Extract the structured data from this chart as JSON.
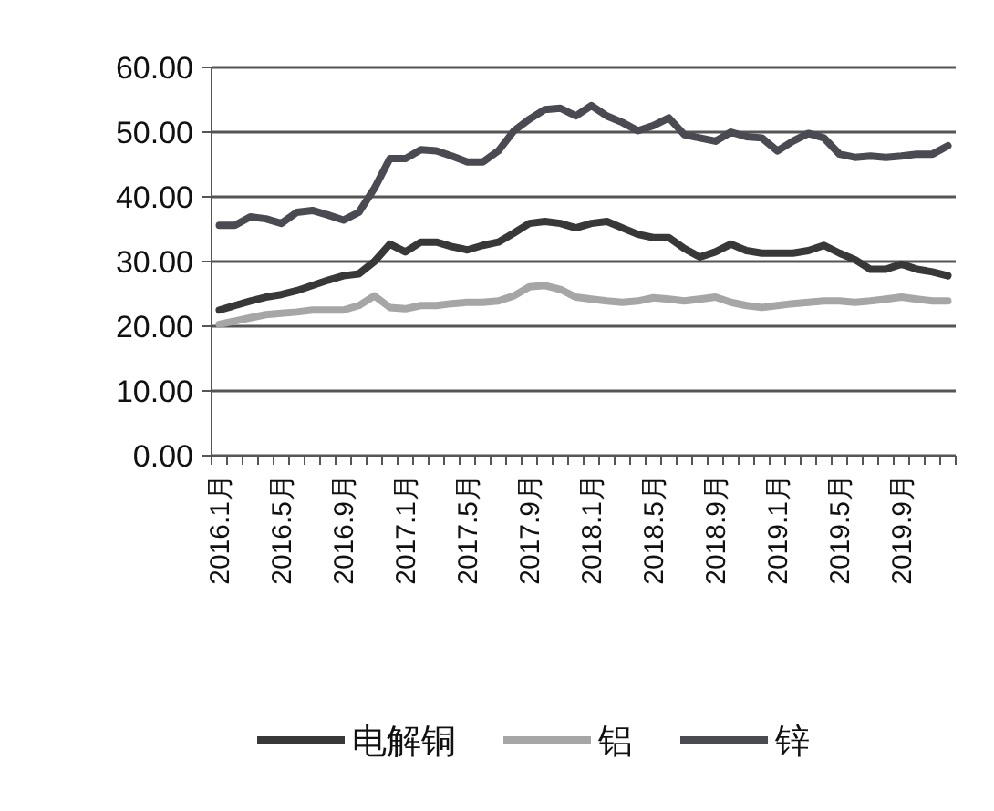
{
  "chart_data": {
    "type": "line",
    "categories": [
      "2016.1月",
      null,
      null,
      null,
      "2016.5月",
      null,
      null,
      null,
      "2016.9月",
      null,
      null,
      null,
      "2017.1月",
      null,
      null,
      null,
      "2017.5月",
      null,
      null,
      null,
      "2017.9月",
      null,
      null,
      null,
      "2018.1月",
      null,
      null,
      null,
      "2018.5月",
      null,
      null,
      null,
      "2018.9月",
      null,
      null,
      null,
      "2019.1月",
      null,
      null,
      null,
      "2019.5月",
      null,
      null,
      null,
      "2019.9月",
      null,
      null,
      null
    ],
    "series": [
      {
        "name": "电解铜",
        "color": "#383838",
        "values": [
          22.5,
          23.2,
          23.9,
          24.5,
          24.9,
          25.5,
          26.3,
          27.1,
          27.8,
          28.1,
          30.0,
          32.7,
          31.5,
          33.0,
          33.0,
          32.3,
          31.8,
          32.5,
          33.0,
          34.4,
          35.9,
          36.2,
          35.9,
          35.2,
          35.9,
          36.2,
          35.2,
          34.2,
          33.7,
          33.7,
          32.0,
          30.7,
          31.5,
          32.7,
          31.7,
          31.3,
          31.3,
          31.3,
          31.7,
          32.5,
          31.3,
          30.3,
          28.8,
          28.8,
          29.6,
          28.8,
          28.4,
          27.8
        ]
      },
      {
        "name": "铝",
        "color": "#a6a6a6",
        "values": [
          20.3,
          20.8,
          21.3,
          21.8,
          22.0,
          22.2,
          22.5,
          22.5,
          22.5,
          23.2,
          24.7,
          22.9,
          22.7,
          23.2,
          23.2,
          23.5,
          23.7,
          23.7,
          23.9,
          24.7,
          26.1,
          26.3,
          25.7,
          24.5,
          24.2,
          23.9,
          23.7,
          23.9,
          24.4,
          24.2,
          23.9,
          24.2,
          24.5,
          23.7,
          23.2,
          22.9,
          23.2,
          23.5,
          23.7,
          23.9,
          23.9,
          23.7,
          23.9,
          24.2,
          24.5,
          24.2,
          23.9,
          23.9
        ]
      },
      {
        "name": "锌",
        "color": "#4a4a52",
        "values": [
          35.6,
          35.6,
          36.9,
          36.6,
          35.9,
          37.6,
          37.9,
          37.2,
          36.4,
          37.6,
          41.3,
          45.9,
          45.9,
          47.3,
          47.1,
          46.3,
          45.4,
          45.4,
          47.1,
          50.2,
          52.0,
          53.5,
          53.7,
          52.5,
          54.1,
          52.5,
          51.5,
          50.2,
          51.0,
          52.2,
          49.6,
          49.1,
          48.6,
          50.0,
          49.3,
          49.1,
          47.1,
          48.6,
          49.8,
          49.1,
          46.6,
          46.1,
          46.3,
          46.1,
          46.3,
          46.6,
          46.6,
          47.9
        ]
      }
    ],
    "ylim": [
      0,
      60
    ],
    "yticks": [
      {
        "value": 0,
        "label": "0.00"
      },
      {
        "value": 10,
        "label": "10.00"
      },
      {
        "value": 20,
        "label": "20.00"
      },
      {
        "value": 30,
        "label": "30.00"
      },
      {
        "value": 40,
        "label": "40.00"
      },
      {
        "value": 50,
        "label": "50.00"
      },
      {
        "value": 60,
        "label": "60.00"
      }
    ],
    "grid": "y",
    "legend": "bottom",
    "marker": "none",
    "line_style": "solid"
  }
}
